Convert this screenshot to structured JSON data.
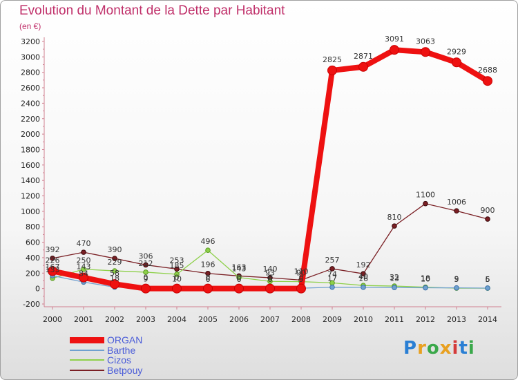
{
  "header": {
    "title": "Evolution du Montant de la Dette par Habitant",
    "subtitle": "(en €)"
  },
  "logo": {
    "text": "Proxiti",
    "colors": [
      "#2a7fd4",
      "#e8a020",
      "#3aa84a",
      "#e8a020",
      "#d43a3a",
      "#2a7fd4",
      "#3aa84a"
    ]
  },
  "chart_data": {
    "type": "line",
    "title": "Evolution du Montant de la Dette par Habitant",
    "ylabel": "(en €)",
    "xlabel": "",
    "x": [
      "2000",
      "2001",
      "2002",
      "2003",
      "2004",
      "2005",
      "2006",
      "2007",
      "2008",
      "2009",
      "2010",
      "2011",
      "2012",
      "2013",
      "2014"
    ],
    "ylim": [
      -200,
      3200
    ],
    "yticks": [
      -200,
      0,
      200,
      400,
      600,
      800,
      1000,
      1200,
      1400,
      1600,
      1800,
      2000,
      2200,
      2400,
      2600,
      2800,
      3000,
      3200
    ],
    "grid": false,
    "legend_position": "bottom-left",
    "series": [
      {
        "name": "ORGAN",
        "color": "#ee1111",
        "values": [
          226,
          143,
          58,
          0,
          0,
          0,
          0,
          0,
          0,
          2825,
          2871,
          3091,
          3063,
          2929,
          2688
        ],
        "labels": [
          "226",
          "143",
          "58",
          "0",
          "0",
          "0",
          "0",
          "0",
          "0",
          "2825",
          "2871",
          "3091",
          "3063",
          "2929",
          "2688"
        ]
      },
      {
        "name": "Barthe",
        "color": "#6fa0d0",
        "values": [
          167,
          84,
          18,
          9,
          10,
          6,
          6,
          6,
          5,
          17,
          16,
          13,
          10,
          9,
          6
        ],
        "labels": [
          "167",
          "84",
          "18",
          "9",
          "10",
          "6",
          "6",
          "6",
          "5",
          "17",
          "16",
          "13",
          "10",
          "9",
          "6"
        ]
      },
      {
        "name": "Cizos",
        "color": "#8ed04a",
        "values": [
          133,
          250,
          229,
          212,
          185,
          496,
          143,
          93,
          90,
          74,
          40,
          32,
          18,
          5,
          5
        ],
        "labels": [
          "133",
          "250",
          "229",
          "212",
          "185",
          "496",
          "143",
          "93",
          "90",
          "74",
          "40",
          "32",
          "18",
          "5",
          "5"
        ]
      },
      {
        "name": "Betpouy",
        "color": "#7a1f24",
        "values": [
          392,
          470,
          390,
          306,
          253,
          196,
          163,
          140,
          110,
          257,
          192,
          810,
          1100,
          1006,
          900
        ],
        "labels": [
          "392",
          "470",
          "390",
          "306",
          "253",
          "196",
          "163",
          "140",
          "110",
          "257",
          "192",
          "810",
          "1100",
          "1006",
          "900"
        ]
      }
    ]
  }
}
